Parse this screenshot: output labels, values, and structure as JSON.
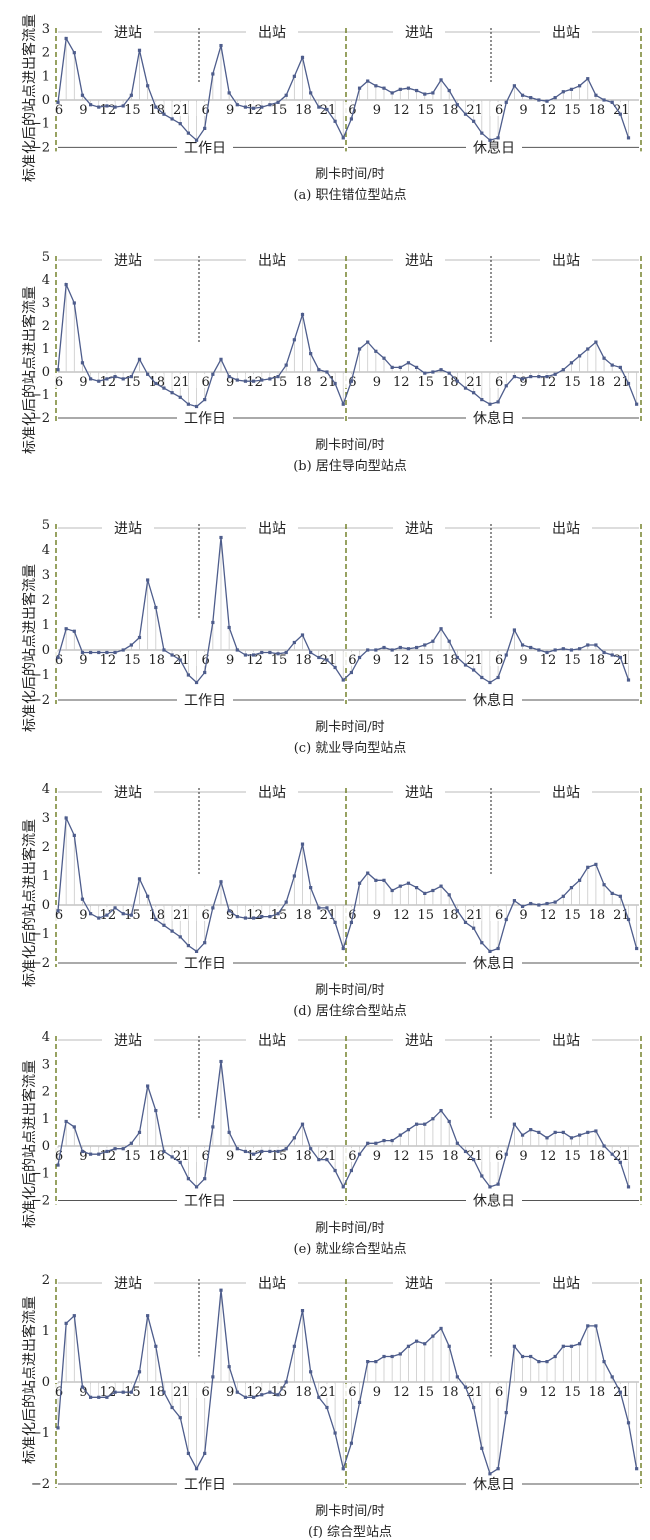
{
  "common": {
    "ylabel": "标准化后的站点进出客流量",
    "xlabel": "刷卡时间/时",
    "ticks": [
      "6",
      "9",
      "12",
      "15",
      "18",
      "21"
    ],
    "halves": [
      "进站",
      "出站"
    ],
    "days": [
      "工作日",
      "休息日"
    ]
  },
  "chart_data": [
    {
      "type": "line",
      "caption": "(a)  职住错位型站点",
      "ylim": [
        -2,
        3
      ],
      "yticks": [
        "3",
        "2",
        "1",
        "0",
        "−1",
        "−2"
      ],
      "series": [
        {
          "values": [
            -0.1,
            2.6,
            2.0,
            0.2,
            -0.2,
            -0.3,
            -0.25,
            -0.3,
            -0.25,
            0.2,
            2.1,
            0.6,
            -0.3,
            -0.6,
            -0.8,
            -1.0,
            -1.4,
            -1.7,
            -1.2,
            1.1,
            2.3,
            0.3,
            -0.2,
            -0.3,
            -0.35,
            -0.3,
            -0.2,
            -0.1,
            0.2,
            1.0,
            1.8,
            0.3,
            -0.3,
            -0.4,
            -0.9,
            -1.6,
            -0.8,
            0.5,
            0.8,
            0.6,
            0.5,
            0.3,
            0.45,
            0.5,
            0.4,
            0.25,
            0.3,
            0.85,
            0.4,
            -0.2,
            -0.6,
            -0.9,
            -1.4,
            -1.7,
            -1.6,
            -0.1,
            0.6,
            0.2,
            0.1,
            0.0,
            -0.05,
            0.1,
            0.35,
            0.45,
            0.6,
            0.9,
            0.2,
            0.0,
            -0.1,
            -0.6,
            -1.6
          ]
        }
      ]
    },
    {
      "type": "line",
      "caption": "(b)  居住导向型站点",
      "ylim": [
        -2,
        5
      ],
      "yticks": [
        "5",
        "4",
        "3",
        "2",
        "1",
        "0",
        "−1",
        "−2"
      ],
      "series": [
        {
          "values": [
            0.1,
            3.8,
            3.0,
            0.4,
            -0.3,
            -0.4,
            -0.3,
            -0.2,
            -0.3,
            -0.2,
            0.55,
            -0.1,
            -0.5,
            -0.7,
            -0.9,
            -1.1,
            -1.4,
            -1.5,
            -1.2,
            -0.1,
            0.55,
            -0.2,
            -0.35,
            -0.4,
            -0.4,
            -0.35,
            -0.3,
            -0.2,
            0.3,
            1.4,
            2.5,
            0.8,
            0.1,
            0.0,
            -0.5,
            -1.4,
            -0.4,
            1.0,
            1.3,
            0.9,
            0.6,
            0.2,
            0.2,
            0.4,
            0.2,
            -0.05,
            0.0,
            0.1,
            -0.05,
            -0.4,
            -0.7,
            -0.9,
            -1.2,
            -1.4,
            -1.3,
            -0.6,
            -0.2,
            -0.3,
            -0.2,
            -0.2,
            -0.2,
            -0.1,
            0.1,
            0.4,
            0.7,
            1.0,
            1.3,
            0.6,
            0.3,
            0.2,
            -0.5,
            -1.4
          ]
        }
      ]
    },
    {
      "type": "line",
      "caption": "(c)  就业导向型站点",
      "ylim": [
        -2,
        5
      ],
      "yticks": [
        "5",
        "4",
        "3",
        "2",
        "1",
        "0",
        "−1",
        "−2"
      ],
      "series": [
        {
          "values": [
            -0.3,
            0.85,
            0.75,
            -0.1,
            -0.1,
            -0.1,
            -0.1,
            -0.1,
            0.0,
            0.2,
            0.5,
            2.8,
            1.7,
            0.0,
            -0.2,
            -0.4,
            -1.0,
            -1.3,
            -0.9,
            1.1,
            4.5,
            0.9,
            0.0,
            -0.2,
            -0.2,
            -0.1,
            -0.1,
            -0.15,
            -0.1,
            0.3,
            0.6,
            -0.1,
            -0.3,
            -0.4,
            -0.7,
            -1.2,
            -0.9,
            -0.3,
            0.0,
            0.0,
            0.1,
            0.0,
            0.1,
            0.05,
            0.1,
            0.2,
            0.35,
            0.85,
            0.35,
            -0.3,
            -0.6,
            -0.8,
            -1.1,
            -1.3,
            -1.1,
            -0.2,
            0.8,
            0.2,
            0.1,
            0.0,
            -0.1,
            0.0,
            0.05,
            0.0,
            0.05,
            0.2,
            0.2,
            -0.1,
            -0.2,
            -0.3,
            -1.2
          ]
        }
      ]
    },
    {
      "type": "line",
      "caption": "(d)  居住综合型站点",
      "ylim": [
        -2,
        4
      ],
      "yticks": [
        "4",
        "3",
        "2",
        "1",
        "0",
        "−1",
        "−2"
      ],
      "series": [
        {
          "values": [
            -0.2,
            3.0,
            2.4,
            0.2,
            -0.3,
            -0.45,
            -0.35,
            -0.1,
            -0.3,
            -0.35,
            0.9,
            0.3,
            -0.5,
            -0.7,
            -0.9,
            -1.1,
            -1.4,
            -1.6,
            -1.3,
            -0.1,
            0.8,
            -0.2,
            -0.4,
            -0.45,
            -0.45,
            -0.4,
            -0.4,
            -0.3,
            0.1,
            1.0,
            2.1,
            0.6,
            -0.1,
            -0.1,
            -0.6,
            -1.5,
            -0.6,
            0.75,
            1.1,
            0.85,
            0.85,
            0.5,
            0.65,
            0.75,
            0.6,
            0.4,
            0.5,
            0.65,
            0.35,
            -0.2,
            -0.6,
            -0.8,
            -1.3,
            -1.6,
            -1.5,
            -0.5,
            0.15,
            -0.05,
            0.05,
            0.0,
            0.05,
            0.1,
            0.3,
            0.6,
            0.85,
            1.3,
            1.4,
            0.7,
            0.4,
            0.3,
            -0.5,
            -1.5
          ]
        }
      ]
    },
    {
      "type": "line",
      "caption": "(e)  就业综合型站点",
      "ylim": [
        -2,
        4
      ],
      "yticks": [
        "4",
        "3",
        "2",
        "1",
        "0",
        "−1",
        "−2"
      ],
      "series": [
        {
          "values": [
            -0.7,
            0.9,
            0.7,
            -0.2,
            -0.3,
            -0.3,
            -0.2,
            -0.1,
            -0.1,
            0.1,
            0.5,
            2.2,
            1.3,
            -0.2,
            -0.4,
            -0.6,
            -1.2,
            -1.5,
            -1.2,
            0.7,
            3.1,
            0.5,
            -0.1,
            -0.2,
            -0.3,
            -0.2,
            -0.2,
            -0.2,
            -0.1,
            0.3,
            0.8,
            -0.1,
            -0.5,
            -0.5,
            -0.9,
            -1.5,
            -0.9,
            -0.3,
            0.1,
            0.1,
            0.2,
            0.2,
            0.4,
            0.6,
            0.8,
            0.8,
            1.0,
            1.3,
            0.9,
            0.1,
            -0.2,
            -0.5,
            -1.1,
            -1.5,
            -1.4,
            -0.3,
            0.8,
            0.4,
            0.6,
            0.5,
            0.3,
            0.5,
            0.5,
            0.3,
            0.4,
            0.5,
            0.55,
            0.0,
            -0.3,
            -0.6,
            -1.5
          ]
        }
      ]
    },
    {
      "type": "line",
      "caption": "(f)  综合型站点",
      "ylim": [
        -2,
        2
      ],
      "yticks": [
        "2",
        "1",
        "0",
        "−1",
        "−2"
      ],
      "series": [
        {
          "values": [
            -0.9,
            1.15,
            1.3,
            -0.1,
            -0.3,
            -0.3,
            -0.3,
            -0.2,
            -0.2,
            -0.2,
            0.2,
            1.3,
            0.7,
            -0.2,
            -0.5,
            -0.7,
            -1.4,
            -1.7,
            -1.4,
            0.1,
            1.8,
            0.3,
            -0.2,
            -0.3,
            -0.3,
            -0.25,
            -0.2,
            -0.25,
            0.0,
            0.7,
            1.4,
            0.2,
            -0.3,
            -0.5,
            -1.0,
            -1.7,
            -1.2,
            -0.4,
            0.4,
            0.4,
            0.5,
            0.5,
            0.55,
            0.7,
            0.8,
            0.75,
            0.9,
            1.05,
            0.7,
            0.1,
            -0.1,
            -0.5,
            -1.3,
            -1.8,
            -1.7,
            -0.6,
            0.7,
            0.5,
            0.5,
            0.4,
            0.4,
            0.5,
            0.7,
            0.7,
            0.75,
            1.1,
            1.1,
            0.4,
            0.1,
            -0.2,
            -0.8,
            -1.7
          ]
        }
      ]
    }
  ]
}
